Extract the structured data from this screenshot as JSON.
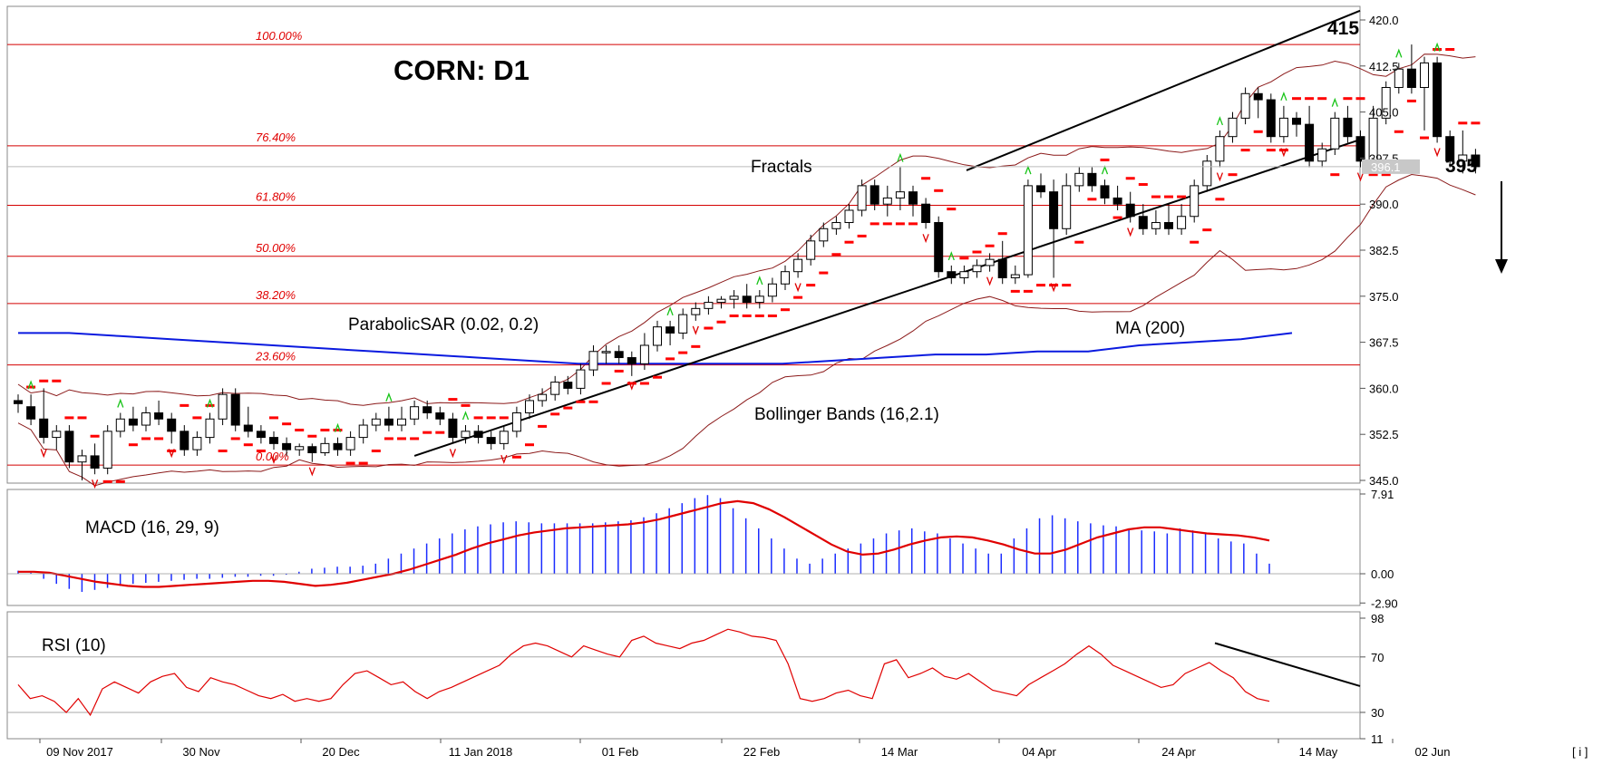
{
  "chart_data": {
    "type": "candlestick",
    "title": "CORN: D1",
    "main_panel": {
      "ylim": [
        345.0,
        420.0
      ],
      "price_ticks": [
        "420.0",
        "412.5",
        "405.0",
        "397.5",
        "390.0",
        "382.5",
        "375.0",
        "367.5",
        "360.0",
        "352.5",
        "345.0"
      ],
      "current_price": "396.1",
      "date_ticks": [
        "09 Nov 2017",
        "30 Nov",
        "20 Dec",
        "11 Jan 2018",
        "01 Feb",
        "22 Feb",
        "14 Mar",
        "04 Apr",
        "24 Apr",
        "14 May",
        "02 Jun"
      ],
      "fibonacci_levels": [
        {
          "label": "100.00%",
          "value": 416.0
        },
        {
          "label": "76.40%",
          "value": 399.5
        },
        {
          "label": "61.80%",
          "value": 389.8
        },
        {
          "label": "50.00%",
          "value": 381.5
        },
        {
          "label": "38.20%",
          "value": 373.8
        },
        {
          "label": "23.60%",
          "value": 363.8
        },
        {
          "label": "0.00%",
          "value": 347.5
        }
      ],
      "annotations": [
        {
          "id": "high",
          "text": "415"
        },
        {
          "id": "target",
          "text": "395"
        }
      ],
      "indicator_labels": {
        "fractals": "Fractals",
        "psar": "ParabolicSAR (0.02, 0.2)",
        "ma": "MA (200)",
        "bollinger": "Bollinger Bands (16,2.1)"
      },
      "ma200": [
        369,
        369,
        368.5,
        368,
        367.5,
        367,
        366.5,
        366,
        365.5,
        365,
        364.5,
        364,
        364,
        364,
        364,
        364,
        364.5,
        365,
        365.5,
        365.5,
        366,
        366,
        367,
        367.5,
        368,
        369
      ],
      "candles": [
        [
          358,
          357.5,
          359,
          356
        ],
        [
          357,
          355,
          359,
          354
        ],
        [
          355,
          352,
          360,
          351
        ],
        [
          352,
          353,
          354,
          350
        ],
        [
          353,
          348,
          354,
          347
        ],
        [
          348,
          349,
          350,
          345
        ],
        [
          349,
          347,
          351,
          346
        ],
        [
          347,
          353,
          354,
          346
        ],
        [
          353,
          355,
          356,
          352
        ],
        [
          355,
          354,
          357,
          353
        ],
        [
          354,
          356,
          357,
          353
        ],
        [
          356,
          355,
          358,
          354
        ],
        [
          355,
          353,
          356,
          351
        ],
        [
          353,
          350,
          354,
          349
        ],
        [
          350,
          352,
          353,
          349
        ],
        [
          352,
          355,
          356,
          351
        ],
        [
          355,
          359,
          360,
          354
        ],
        [
          359,
          354,
          360,
          353
        ],
        [
          354,
          353,
          357,
          352
        ],
        [
          353,
          352,
          354,
          351
        ],
        [
          352,
          351,
          353,
          350
        ],
        [
          351,
          350,
          352,
          349
        ],
        [
          350,
          350.5,
          351,
          349
        ],
        [
          350.5,
          349.5,
          351,
          348
        ],
        [
          349.5,
          351,
          352,
          349
        ],
        [
          351,
          350,
          352,
          349
        ],
        [
          350,
          352,
          353,
          349
        ],
        [
          352,
          354,
          355,
          351
        ],
        [
          354,
          355,
          356,
          353
        ],
        [
          355,
          354,
          357,
          353
        ],
        [
          354,
          355,
          357,
          353
        ],
        [
          355,
          357,
          358,
          354
        ],
        [
          357,
          356,
          358,
          355
        ],
        [
          356,
          355,
          357,
          354
        ],
        [
          355,
          352,
          356,
          351
        ],
        [
          352,
          353,
          354,
          351
        ],
        [
          353,
          352,
          354,
          351
        ],
        [
          352,
          351,
          353,
          350
        ],
        [
          351,
          353,
          354,
          350
        ],
        [
          353,
          356,
          357,
          352
        ],
        [
          356,
          358,
          359,
          355
        ],
        [
          358,
          359,
          360,
          357
        ],
        [
          359,
          361,
          362,
          358
        ],
        [
          361,
          360,
          362,
          359
        ],
        [
          360,
          363,
          364,
          359
        ],
        [
          363,
          366,
          367,
          362
        ],
        [
          366,
          366,
          367,
          364
        ],
        [
          366,
          365,
          367,
          364
        ],
        [
          365,
          364,
          366,
          362
        ],
        [
          364,
          367,
          369,
          363
        ],
        [
          367,
          370,
          371,
          366
        ],
        [
          370,
          369,
          371,
          367
        ],
        [
          369,
          372,
          373,
          368
        ],
        [
          372,
          373,
          374,
          371
        ],
        [
          373,
          374,
          375,
          372
        ],
        [
          374,
          374.5,
          375,
          373
        ],
        [
          374.5,
          375,
          376,
          373
        ],
        [
          375,
          374,
          377,
          373
        ],
        [
          374,
          375,
          376,
          373
        ],
        [
          375,
          377,
          378,
          374
        ],
        [
          377,
          379,
          380,
          376
        ],
        [
          379,
          381,
          382,
          378
        ],
        [
          381,
          384,
          385,
          380
        ],
        [
          384,
          386,
          387,
          383
        ],
        [
          386,
          387,
          388,
          385
        ],
        [
          387,
          389,
          390,
          386
        ],
        [
          389,
          393,
          394,
          388
        ],
        [
          393,
          390,
          394,
          389
        ],
        [
          390,
          391,
          393,
          388
        ],
        [
          391,
          392,
          396,
          389
        ],
        [
          392,
          390,
          393,
          388
        ],
        [
          390,
          387,
          391,
          386
        ],
        [
          387,
          379,
          388,
          378
        ],
        [
          379,
          378,
          380,
          377
        ],
        [
          378,
          379,
          380,
          377
        ],
        [
          379,
          380,
          381,
          378
        ],
        [
          380,
          381,
          382,
          379
        ],
        [
          381,
          378,
          384,
          377
        ],
        [
          378,
          378.5,
          380,
          377
        ],
        [
          378.5,
          393,
          394,
          378
        ],
        [
          393,
          392,
          395,
          391
        ],
        [
          392,
          386,
          394,
          378
        ],
        [
          386,
          393,
          395,
          385
        ],
        [
          393,
          395,
          396,
          392
        ],
        [
          395,
          393,
          396,
          392
        ],
        [
          393,
          391,
          394,
          390
        ],
        [
          391,
          390,
          393,
          389
        ],
        [
          390,
          388,
          392,
          387
        ],
        [
          388,
          386,
          390,
          385
        ],
        [
          386,
          387,
          389,
          385
        ],
        [
          387,
          386,
          390,
          385
        ],
        [
          386,
          388,
          390,
          385
        ],
        [
          388,
          393,
          394,
          387
        ],
        [
          393,
          397,
          398,
          392
        ],
        [
          397,
          401,
          402,
          396
        ],
        [
          401,
          404,
          405,
          400
        ],
        [
          404,
          408,
          409,
          403
        ],
        [
          408,
          407,
          409,
          404
        ],
        [
          407,
          401,
          408,
          400
        ],
        [
          401,
          404,
          406,
          400
        ],
        [
          404,
          403,
          405,
          401
        ],
        [
          403,
          397,
          406,
          396
        ],
        [
          397,
          399,
          400,
          396
        ],
        [
          399,
          404,
          405,
          398
        ],
        [
          404,
          401,
          406,
          400
        ],
        [
          401,
          397,
          402,
          396
        ],
        [
          397,
          404,
          406,
          396
        ],
        [
          404,
          409,
          410,
          403
        ],
        [
          409,
          412,
          413,
          408
        ],
        [
          412,
          409,
          416,
          408
        ],
        [
          409,
          413,
          414,
          402
        ],
        [
          413,
          401,
          414,
          400
        ],
        [
          401,
          397,
          402,
          396
        ],
        [
          397,
          398,
          402,
          395
        ],
        [
          398,
          396.1,
          399,
          395
        ]
      ],
      "fractals_up_idx": [
        1,
        8,
        15,
        25,
        29,
        35,
        51,
        58,
        69,
        73,
        79,
        85,
        94,
        99,
        103,
        108,
        111
      ],
      "fractals_down_idx": [
        2,
        6,
        12,
        20,
        23,
        34,
        38,
        48,
        53,
        61,
        71,
        76,
        81,
        87,
        94,
        99,
        105,
        111
      ]
    },
    "macd_panel": {
      "label": "MACD (16, 29, 9)",
      "ylim": [
        -2.9,
        7.91
      ],
      "ticks": [
        "7.91",
        "0.00",
        "-2.90"
      ],
      "histogram": [
        0.3,
        0.1,
        -0.5,
        -1.0,
        -1.5,
        -1.8,
        -1.6,
        -1.4,
        -1.2,
        -1.0,
        -0.9,
        -0.8,
        -0.7,
        -0.6,
        -0.5,
        -0.5,
        -0.4,
        -0.3,
        -0.3,
        -0.2,
        -0.2,
        -0.1,
        0.2,
        0.5,
        0.6,
        0.7,
        0.7,
        0.8,
        1.0,
        1.5,
        2.0,
        2.5,
        3.0,
        3.5,
        4.0,
        4.4,
        4.7,
        4.9,
        5.1,
        5.2,
        5.1,
        5.0,
        5.0,
        5.0,
        5.0,
        5.0,
        5.1,
        5.2,
        5.3,
        5.6,
        6.0,
        6.5,
        7.0,
        7.5,
        7.8,
        7.5,
        6.5,
        5.5,
        4.5,
        3.5,
        2.5,
        1.5,
        1.0,
        1.5,
        2.0,
        2.5,
        3.0,
        3.5,
        4.0,
        4.3,
        4.5,
        4.2,
        4.0,
        3.5,
        3.0,
        2.5,
        2.0,
        2.0,
        3.5,
        4.5,
        5.5,
        5.8,
        5.5,
        5.2,
        5.0,
        4.8,
        4.7,
        4.5,
        4.3,
        4.2,
        4.0,
        4.5,
        4.3,
        4.0,
        3.5,
        3.2,
        3.0,
        2.0,
        1.0
      ],
      "signal": [
        0.2,
        0.2,
        0.1,
        -0.2,
        -0.5,
        -0.8,
        -1.0,
        -1.2,
        -1.3,
        -1.3,
        -1.2,
        -1.1,
        -1.0,
        -0.9,
        -0.8,
        -0.7,
        -0.7,
        -0.8,
        -1.0,
        -1.2,
        -1.1,
        -0.9,
        -0.6,
        -0.3,
        0.0,
        0.4,
        0.9,
        1.4,
        1.9,
        2.5,
        3.0,
        3.4,
        3.8,
        4.1,
        4.3,
        4.5,
        4.6,
        4.7,
        4.8,
        4.9,
        5.1,
        5.4,
        5.8,
        6.2,
        6.6,
        7.0,
        7.2,
        7.0,
        6.4,
        5.6,
        4.7,
        3.8,
        2.9,
        2.2,
        1.9,
        2.0,
        2.4,
        2.9,
        3.3,
        3.6,
        3.7,
        3.6,
        3.3,
        2.9,
        2.4,
        2.0,
        2.0,
        2.4,
        3.0,
        3.6,
        4.0,
        4.4,
        4.6,
        4.6,
        4.4,
        4.2,
        4.0,
        3.9,
        3.8,
        3.6,
        3.3
      ]
    },
    "rsi_panel": {
      "label": "RSI (10)",
      "ylim": [
        11,
        98
      ],
      "ticks": [
        "98",
        "70",
        "30",
        "11"
      ],
      "levels": [
        70,
        30
      ],
      "values": [
        50,
        40,
        42,
        38,
        30,
        40,
        28,
        47,
        52,
        48,
        44,
        52,
        56,
        58,
        48,
        45,
        55,
        52,
        50,
        46,
        42,
        40,
        43,
        38,
        40,
        38,
        40,
        50,
        58,
        60,
        55,
        50,
        52,
        45,
        40,
        45,
        48,
        52,
        56,
        60,
        64,
        72,
        78,
        80,
        78,
        74,
        70,
        78,
        75,
        72,
        70,
        82,
        85,
        80,
        78,
        76,
        80,
        82,
        86,
        90,
        88,
        85,
        84,
        82,
        65,
        40,
        38,
        40,
        44,
        46,
        42,
        40,
        65,
        68,
        55,
        58,
        62,
        56,
        54,
        58,
        52,
        46,
        44,
        42,
        50,
        55,
        60,
        65,
        72,
        78,
        72,
        64,
        60,
        56,
        52,
        48,
        50,
        58,
        62,
        66,
        60,
        55,
        45,
        40,
        38
      ]
    }
  }
}
